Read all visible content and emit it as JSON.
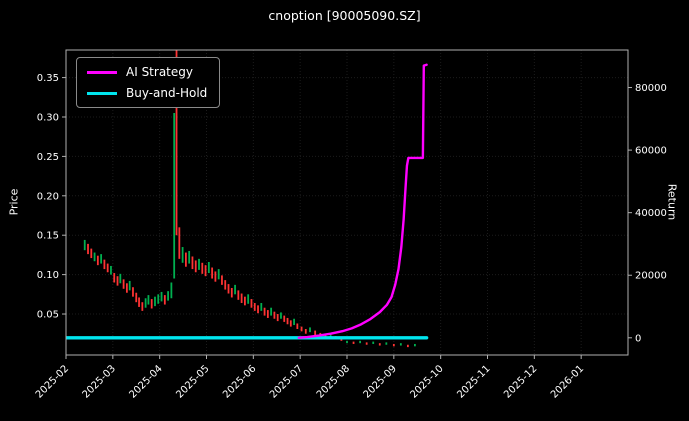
{
  "title": "cnoption [90005090.SZ]",
  "colors": {
    "background": "#000000",
    "text": "#ffffff",
    "spine": "#b0b0b0",
    "grid": "#1c1c1c",
    "candle_up": "#00b050",
    "candle_down": "#ff3333",
    "ai_strategy": "#ff00ff",
    "buy_and_hold": "#00e5ee"
  },
  "chart_data": {
    "type": "mixed",
    "subtype": "candlestick-with-lines",
    "title": "cnoption [90005090.SZ]",
    "x_axis": {
      "tick_labels": [
        "2025-02",
        "2025-03",
        "2025-04",
        "2025-05",
        "2025-06",
        "2025-07",
        "2025-08",
        "2025-09",
        "2025-10",
        "2025-11",
        "2025-12",
        "2026-01"
      ],
      "tick_rotation_deg": 45
    },
    "left_axis": {
      "label": "Price",
      "ticks": [
        0.05,
        0.1,
        0.15,
        0.2,
        0.25,
        0.3,
        0.35
      ],
      "lim": [
        -0.002,
        0.385
      ]
    },
    "right_axis": {
      "label": "Return",
      "ticks": [
        0,
        20000,
        40000,
        60000,
        80000
      ],
      "lim": [
        -5500,
        92000
      ]
    },
    "legend_position": "upper-left",
    "grid": false,
    "candles": {
      "axis": "left",
      "note": "values are [months_since_2025-02, low, high, up(1)/down(0)]",
      "points": [
        [
          0.4,
          0.131,
          0.144,
          1
        ],
        [
          0.47,
          0.126,
          0.139,
          0
        ],
        [
          0.54,
          0.121,
          0.133,
          0
        ],
        [
          0.61,
          0.117,
          0.128,
          1
        ],
        [
          0.68,
          0.112,
          0.124,
          0
        ],
        [
          0.75,
          0.114,
          0.126,
          1
        ],
        [
          0.82,
          0.107,
          0.119,
          0
        ],
        [
          0.89,
          0.103,
          0.114,
          0
        ],
        [
          0.96,
          0.1,
          0.111,
          1
        ],
        [
          1.03,
          0.09,
          0.102,
          0
        ],
        [
          1.1,
          0.086,
          0.098,
          0
        ],
        [
          1.16,
          0.089,
          0.101,
          1
        ],
        [
          1.23,
          0.082,
          0.094,
          0
        ],
        [
          1.3,
          0.077,
          0.089,
          0
        ],
        [
          1.36,
          0.08,
          0.092,
          1
        ],
        [
          1.43,
          0.072,
          0.084,
          0
        ],
        [
          1.5,
          0.065,
          0.077,
          0
        ],
        [
          1.56,
          0.059,
          0.071,
          0
        ],
        [
          1.63,
          0.054,
          0.065,
          0
        ],
        [
          1.7,
          0.058,
          0.07,
          1
        ],
        [
          1.76,
          0.062,
          0.074,
          1
        ],
        [
          1.83,
          0.057,
          0.069,
          0
        ],
        [
          1.9,
          0.06,
          0.072,
          1
        ],
        [
          1.97,
          0.063,
          0.075,
          1
        ],
        [
          2.04,
          0.066,
          0.078,
          1
        ],
        [
          2.11,
          0.062,
          0.074,
          0
        ],
        [
          2.18,
          0.067,
          0.079,
          1
        ],
        [
          2.25,
          0.07,
          0.09,
          1
        ],
        [
          2.31,
          0.095,
          0.305,
          1
        ],
        [
          2.36,
          0.15,
          0.385,
          0
        ],
        [
          2.42,
          0.12,
          0.16,
          0
        ],
        [
          2.49,
          0.115,
          0.135,
          1
        ],
        [
          2.56,
          0.11,
          0.128,
          0
        ],
        [
          2.63,
          0.114,
          0.13,
          1
        ],
        [
          2.7,
          0.107,
          0.123,
          0
        ],
        [
          2.77,
          0.103,
          0.118,
          0
        ],
        [
          2.84,
          0.106,
          0.12,
          1
        ],
        [
          2.91,
          0.101,
          0.115,
          0
        ],
        [
          2.98,
          0.098,
          0.112,
          0
        ],
        [
          3.05,
          0.102,
          0.116,
          1
        ],
        [
          3.12,
          0.095,
          0.109,
          0
        ],
        [
          3.19,
          0.091,
          0.104,
          0
        ],
        [
          3.26,
          0.094,
          0.107,
          1
        ],
        [
          3.33,
          0.087,
          0.099,
          0
        ],
        [
          3.4,
          0.081,
          0.093,
          0
        ],
        [
          3.47,
          0.076,
          0.088,
          0
        ],
        [
          3.54,
          0.071,
          0.083,
          0
        ],
        [
          3.61,
          0.075,
          0.087,
          1
        ],
        [
          3.68,
          0.068,
          0.08,
          0
        ],
        [
          3.75,
          0.064,
          0.076,
          0
        ],
        [
          3.82,
          0.061,
          0.072,
          0
        ],
        [
          3.89,
          0.063,
          0.075,
          1
        ],
        [
          3.96,
          0.058,
          0.069,
          0
        ],
        [
          4.03,
          0.054,
          0.064,
          0
        ],
        [
          4.1,
          0.051,
          0.061,
          0
        ],
        [
          4.17,
          0.054,
          0.064,
          1
        ],
        [
          4.24,
          0.048,
          0.058,
          0
        ],
        [
          4.31,
          0.045,
          0.055,
          0
        ],
        [
          4.38,
          0.048,
          0.058,
          1
        ],
        [
          4.45,
          0.044,
          0.053,
          0
        ],
        [
          4.52,
          0.041,
          0.05,
          0
        ],
        [
          4.59,
          0.044,
          0.052,
          1
        ],
        [
          4.66,
          0.04,
          0.048,
          0
        ],
        [
          4.73,
          0.037,
          0.045,
          0
        ],
        [
          4.8,
          0.034,
          0.042,
          0
        ],
        [
          4.87,
          0.036,
          0.044,
          1
        ],
        [
          4.94,
          0.031,
          0.038,
          0
        ],
        [
          5.03,
          0.028,
          0.034,
          0
        ],
        [
          5.12,
          0.025,
          0.031,
          0
        ],
        [
          5.21,
          0.027,
          0.033,
          1
        ],
        [
          5.32,
          0.023,
          0.029,
          0
        ],
        [
          5.43,
          0.021,
          0.026,
          0
        ],
        [
          5.54,
          0.019,
          0.024,
          0
        ],
        [
          5.65,
          0.02,
          0.025,
          1
        ],
        [
          5.76,
          0.018,
          0.022,
          0
        ],
        [
          5.88,
          0.016,
          0.02,
          0
        ],
        [
          6.0,
          0.013,
          0.016,
          1
        ],
        [
          6.14,
          0.012,
          0.015,
          0
        ],
        [
          6.28,
          0.013,
          0.016,
          1
        ],
        [
          6.42,
          0.011,
          0.014,
          0
        ],
        [
          6.56,
          0.012,
          0.015,
          1
        ],
        [
          6.7,
          0.01,
          0.013,
          0
        ],
        [
          6.84,
          0.011,
          0.014,
          1
        ],
        [
          7.0,
          0.009,
          0.012,
          0
        ],
        [
          7.15,
          0.01,
          0.013,
          1
        ],
        [
          7.3,
          0.008,
          0.011,
          0
        ],
        [
          7.45,
          0.009,
          0.012,
          1
        ]
      ]
    },
    "series": [
      {
        "name": "AI Strategy",
        "axis": "right",
        "color": "#ff00ff",
        "width": 2.4,
        "points": [
          [
            4.97,
            0
          ],
          [
            5.15,
            250
          ],
          [
            5.4,
            700
          ],
          [
            5.65,
            1300
          ],
          [
            5.9,
            2100
          ],
          [
            6.1,
            3000
          ],
          [
            6.3,
            4300
          ],
          [
            6.5,
            6000
          ],
          [
            6.7,
            8200
          ],
          [
            6.85,
            10500
          ],
          [
            6.95,
            13000
          ],
          [
            7.03,
            17000
          ],
          [
            7.1,
            22000
          ],
          [
            7.16,
            29000
          ],
          [
            7.21,
            38000
          ],
          [
            7.25,
            48000
          ],
          [
            7.28,
            55000
          ],
          [
            7.31,
            57500
          ],
          [
            7.62,
            57500
          ],
          [
            7.64,
            87000
          ],
          [
            7.7,
            87300
          ]
        ]
      },
      {
        "name": "Buy-and-Hold",
        "axis": "right",
        "color": "#00e5ee",
        "width": 3.4,
        "points": [
          [
            0.0,
            0
          ],
          [
            7.7,
            0
          ]
        ]
      }
    ]
  }
}
